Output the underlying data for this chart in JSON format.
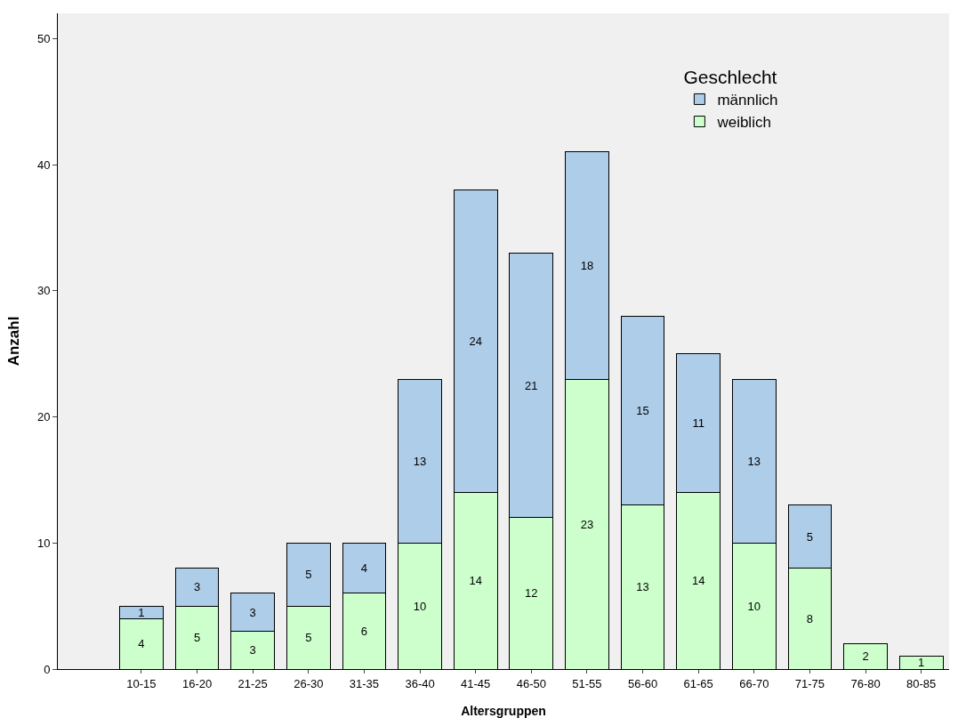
{
  "chart_data": {
    "type": "bar",
    "stacked": true,
    "xlabel": "Altersgruppen",
    "ylabel": "Anzahl",
    "legend_title": "Geschlecht",
    "categories": [
      "10-15",
      "16-20",
      "21-25",
      "26-30",
      "31-35",
      "36-40",
      "41-45",
      "46-50",
      "51-55",
      "56-60",
      "61-65",
      "66-70",
      "71-75",
      "76-80",
      "80-85"
    ],
    "series": [
      {
        "name": "weiblich",
        "color": "#ccffcc",
        "values": [
          4,
          5,
          3,
          5,
          6,
          10,
          14,
          12,
          23,
          13,
          14,
          10,
          8,
          2,
          1
        ]
      },
      {
        "name": "männlich",
        "color": "#aecde9",
        "values": [
          1,
          3,
          3,
          5,
          4,
          13,
          24,
          21,
          18,
          15,
          11,
          13,
          5,
          null,
          null
        ]
      }
    ],
    "ylim": [
      0,
      52
    ],
    "yticks": [
      0,
      10,
      20,
      30,
      40,
      50
    ],
    "grid": false,
    "legend": "top right",
    "data_labels": true
  }
}
